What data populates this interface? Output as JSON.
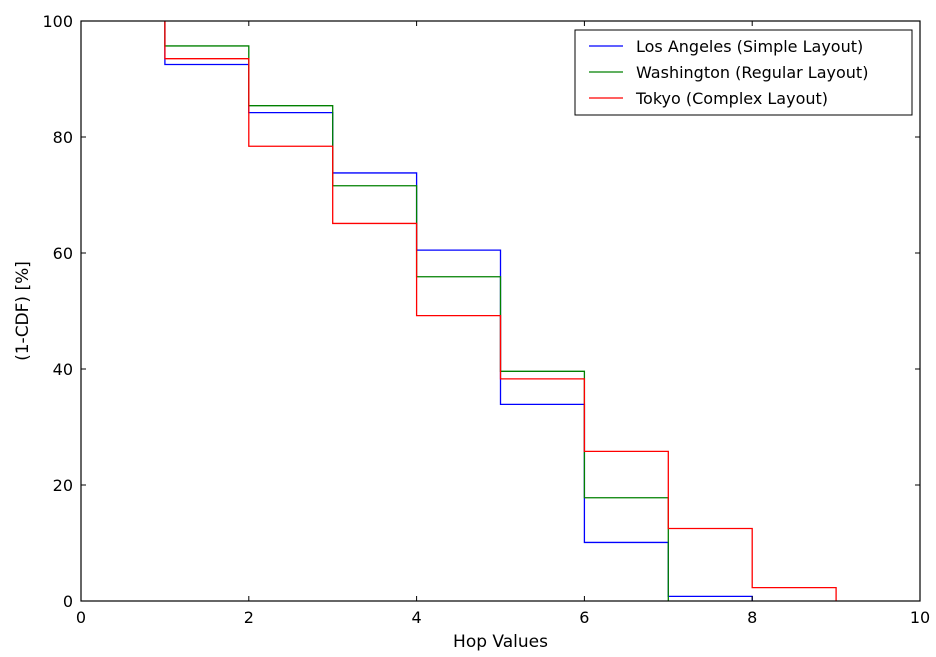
{
  "chart_data": {
    "type": "line",
    "step": "post",
    "xlabel": "Hop Values",
    "ylabel": "(1-CDF) [%]",
    "xlim": [
      0,
      10
    ],
    "ylim": [
      0,
      100
    ],
    "xticks": [
      "0",
      "2",
      "4",
      "6",
      "8",
      "10"
    ],
    "yticks": [
      "0",
      "20",
      "40",
      "60",
      "80",
      "100"
    ],
    "grid": false,
    "legend_position": "top-right",
    "series": [
      {
        "name": "Los Angeles (Simple Layout)",
        "color": "#0000ff",
        "x": [
          1,
          2,
          3,
          4,
          5,
          6,
          7,
          8
        ],
        "values": [
          92.5,
          84.2,
          73.8,
          60.5,
          33.9,
          10.1,
          0.8,
          0.0
        ]
      },
      {
        "name": "Washington (Regular Layout)",
        "color": "#008000",
        "x": [
          1,
          2,
          3,
          4,
          5,
          6,
          7
        ],
        "values": [
          95.7,
          85.4,
          71.6,
          55.9,
          39.6,
          17.8,
          0.0
        ]
      },
      {
        "name": "Tokyo (Complex Layout)",
        "color": "#ff0000",
        "x": [
          1,
          2,
          3,
          4,
          5,
          6,
          7,
          8,
          9
        ],
        "values": [
          93.5,
          78.4,
          65.1,
          49.2,
          38.3,
          25.8,
          12.5,
          2.3,
          0.0
        ]
      }
    ]
  }
}
